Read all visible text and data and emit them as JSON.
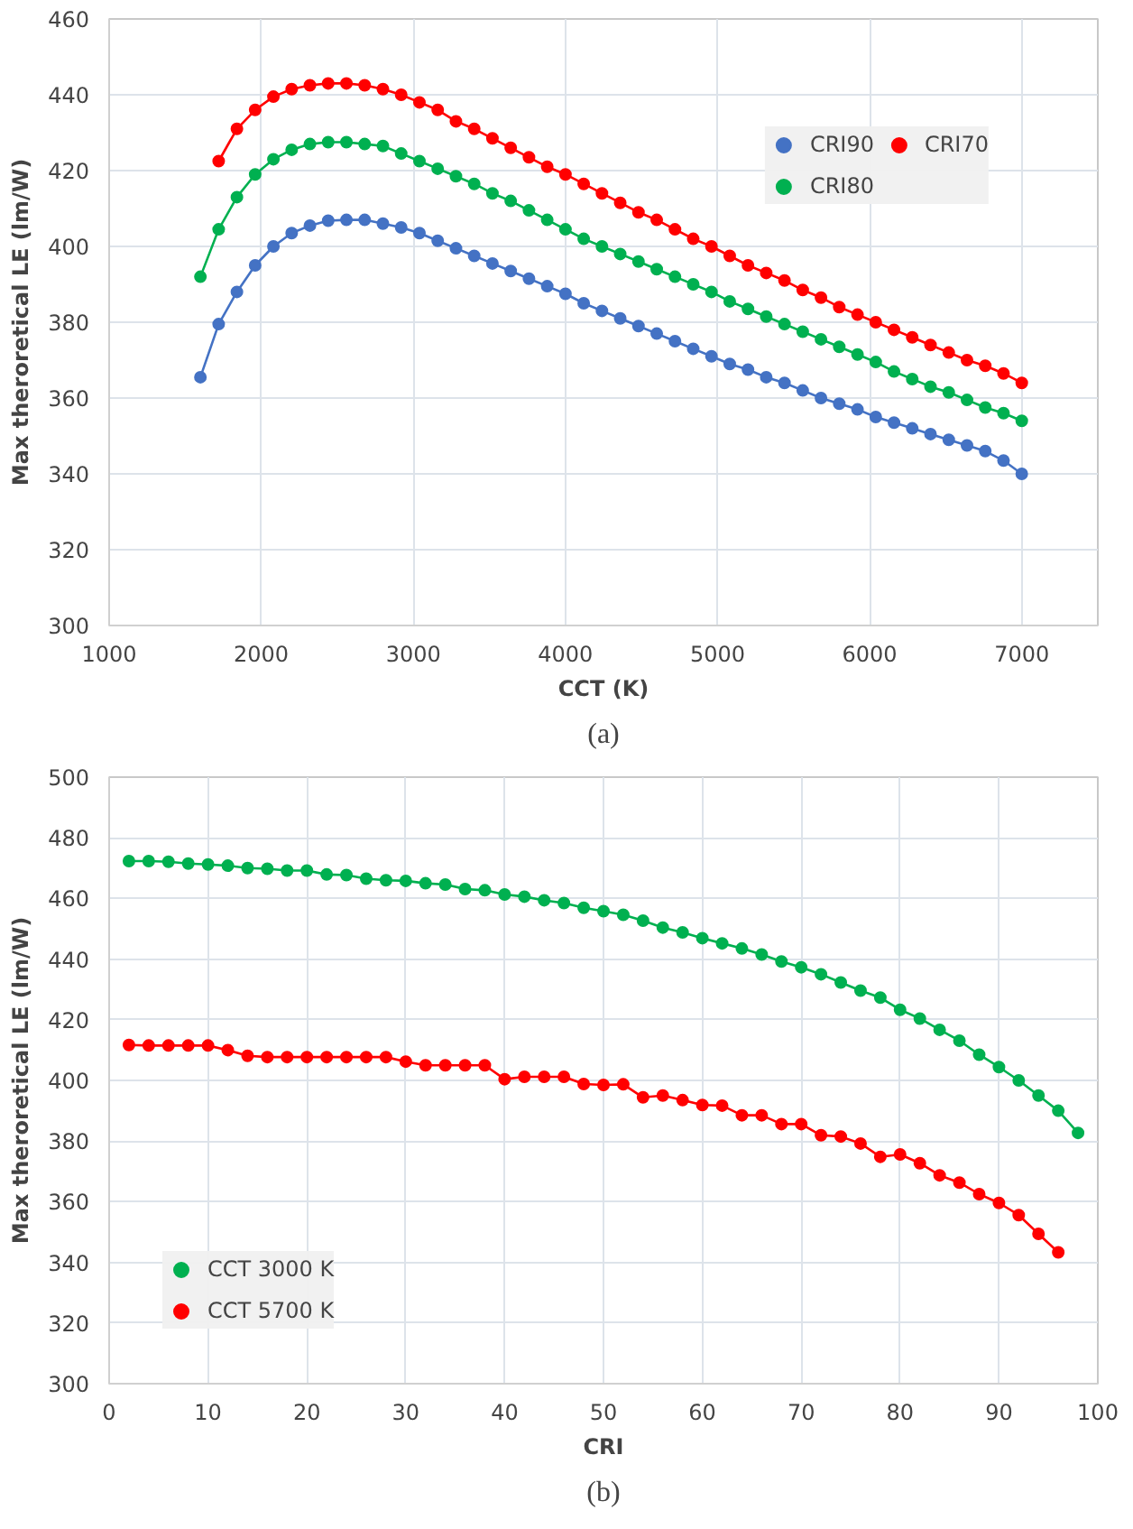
{
  "chart_data": [
    {
      "type": "line",
      "xlabel": "CCT (K)",
      "ylabel": "Max theroretical LE (lm/W)",
      "annotations": [
        "(a)"
      ],
      "x": [
        1600,
        1720,
        1840,
        1960,
        2080,
        2200,
        2320,
        2440,
        2560,
        2680,
        2800,
        2920,
        3040,
        3160,
        3280,
        3400,
        3520,
        3640,
        3760,
        3880,
        4000,
        4120,
        4240,
        4360,
        4480,
        4600,
        4720,
        4840,
        4960,
        5080,
        5200,
        5320,
        5440,
        5560,
        5680,
        5800,
        5920,
        6040,
        6160,
        6280,
        6400,
        6520,
        6640,
        6760,
        6880,
        7000
      ],
      "series": [
        {
          "name": "CRI90",
          "color": "#4472c4",
          "values": [
            365.5,
            379.5,
            388,
            395,
            400,
            403.5,
            405.5,
            406.8,
            407,
            407,
            406,
            405,
            403.5,
            401.5,
            399.5,
            397.5,
            395.5,
            393.5,
            391.5,
            389.5,
            387.5,
            385,
            383,
            381,
            379,
            377,
            375,
            373,
            371,
            369,
            367.5,
            365.5,
            364,
            362,
            360,
            358.5,
            357,
            355,
            353.5,
            352,
            350.5,
            349,
            347.5,
            346,
            343.5,
            340
          ]
        },
        {
          "name": "CRI80",
          "color": "#00b050",
          "values": [
            392,
            404.5,
            413,
            419,
            423,
            425.5,
            427,
            427.5,
            427.5,
            427,
            426.5,
            424.5,
            422.5,
            420.5,
            418.5,
            416.5,
            414,
            412,
            409.5,
            407,
            404.5,
            402,
            400,
            398,
            396,
            394,
            392,
            390,
            388,
            385.5,
            383.5,
            381.5,
            379.5,
            377.5,
            375.5,
            373.5,
            371.5,
            369.5,
            367,
            365,
            363,
            361.5,
            359.5,
            357.5,
            356,
            354
          ]
        },
        {
          "name": "CRI70",
          "color": "#ff0000",
          "values": [
            null,
            422.5,
            431,
            436,
            439.5,
            441.5,
            442.5,
            443,
            443,
            442.5,
            441.5,
            440,
            438,
            436,
            433,
            431,
            428.5,
            426,
            423.5,
            421,
            419,
            416.5,
            414,
            411.5,
            409,
            407,
            404.5,
            402,
            400,
            397.5,
            395,
            393,
            391,
            388.5,
            386.5,
            384,
            382,
            380,
            378,
            376,
            374,
            372,
            370,
            368.5,
            366.5,
            364
          ]
        }
      ],
      "xlim": [
        1000,
        7500
      ],
      "xticks": [
        1000,
        2000,
        3000,
        4000,
        5000,
        6000,
        7000
      ],
      "ylim": [
        300,
        460
      ],
      "yticks": [
        300,
        320,
        340,
        360,
        380,
        400,
        420,
        440,
        460
      ],
      "grid": true,
      "legend": "top right",
      "marker": "circle",
      "line_style": "solid"
    },
    {
      "type": "line",
      "xlabel": "CRI",
      "ylabel": "Max theroretical LE (lm/W)",
      "annotations": [
        "(b)"
      ],
      "x": [
        2,
        4,
        6,
        8,
        10,
        12,
        14,
        16,
        18,
        20,
        22,
        24,
        26,
        28,
        30,
        32,
        34,
        36,
        38,
        40,
        42,
        44,
        46,
        48,
        50,
        52,
        54,
        56,
        58,
        60,
        62,
        64,
        66,
        68,
        70,
        72,
        74,
        76,
        78,
        80,
        82,
        84,
        86,
        88,
        90,
        92,
        94,
        96,
        98
      ],
      "series": [
        {
          "name": "CCT 3000 K",
          "color": "#00b050",
          "values": [
            472.3,
            472.3,
            472.1,
            471.5,
            471.2,
            470.8,
            470,
            469.8,
            469.2,
            469.2,
            467.9,
            467.7,
            466.5,
            466,
            465.8,
            465,
            464.6,
            463.1,
            462.7,
            461.3,
            460.6,
            459.4,
            458.5,
            456.9,
            455.8,
            454.6,
            452.7,
            450.4,
            448.8,
            446.9,
            445.2,
            443.5,
            441.5,
            439.2,
            437.3,
            435,
            432.3,
            429.6,
            427.3,
            423.3,
            420.4,
            416.7,
            413.1,
            408.5,
            404.4,
            400,
            395,
            390,
            382.7
          ]
        },
        {
          "name": "CCT 5700 K",
          "color": "#ff0000",
          "values": [
            411.7,
            411.5,
            411.5,
            411.5,
            411.5,
            410,
            408.1,
            407.7,
            407.7,
            407.7,
            407.7,
            407.7,
            407.7,
            407.7,
            406.2,
            405,
            405,
            405,
            405,
            400.4,
            401.2,
            401.2,
            401.2,
            398.8,
            398.5,
            398.7,
            394.4,
            395,
            393.5,
            391.9,
            391.7,
            388.5,
            388.5,
            385.6,
            385.6,
            381.9,
            381.5,
            379.2,
            374.8,
            375.6,
            372.7,
            368.7,
            366.3,
            362.5,
            359.6,
            355.6,
            349.4,
            343.3,
            null
          ]
        }
      ],
      "xlim": [
        0,
        100
      ],
      "xticks": [
        0,
        10,
        20,
        30,
        40,
        50,
        60,
        70,
        80,
        90,
        100
      ],
      "ylim": [
        300,
        500
      ],
      "yticks": [
        300,
        320,
        340,
        360,
        380,
        400,
        420,
        440,
        460,
        480,
        500
      ],
      "grid": true,
      "legend": "bottom left",
      "marker": "circle",
      "line_style": "solid"
    }
  ]
}
